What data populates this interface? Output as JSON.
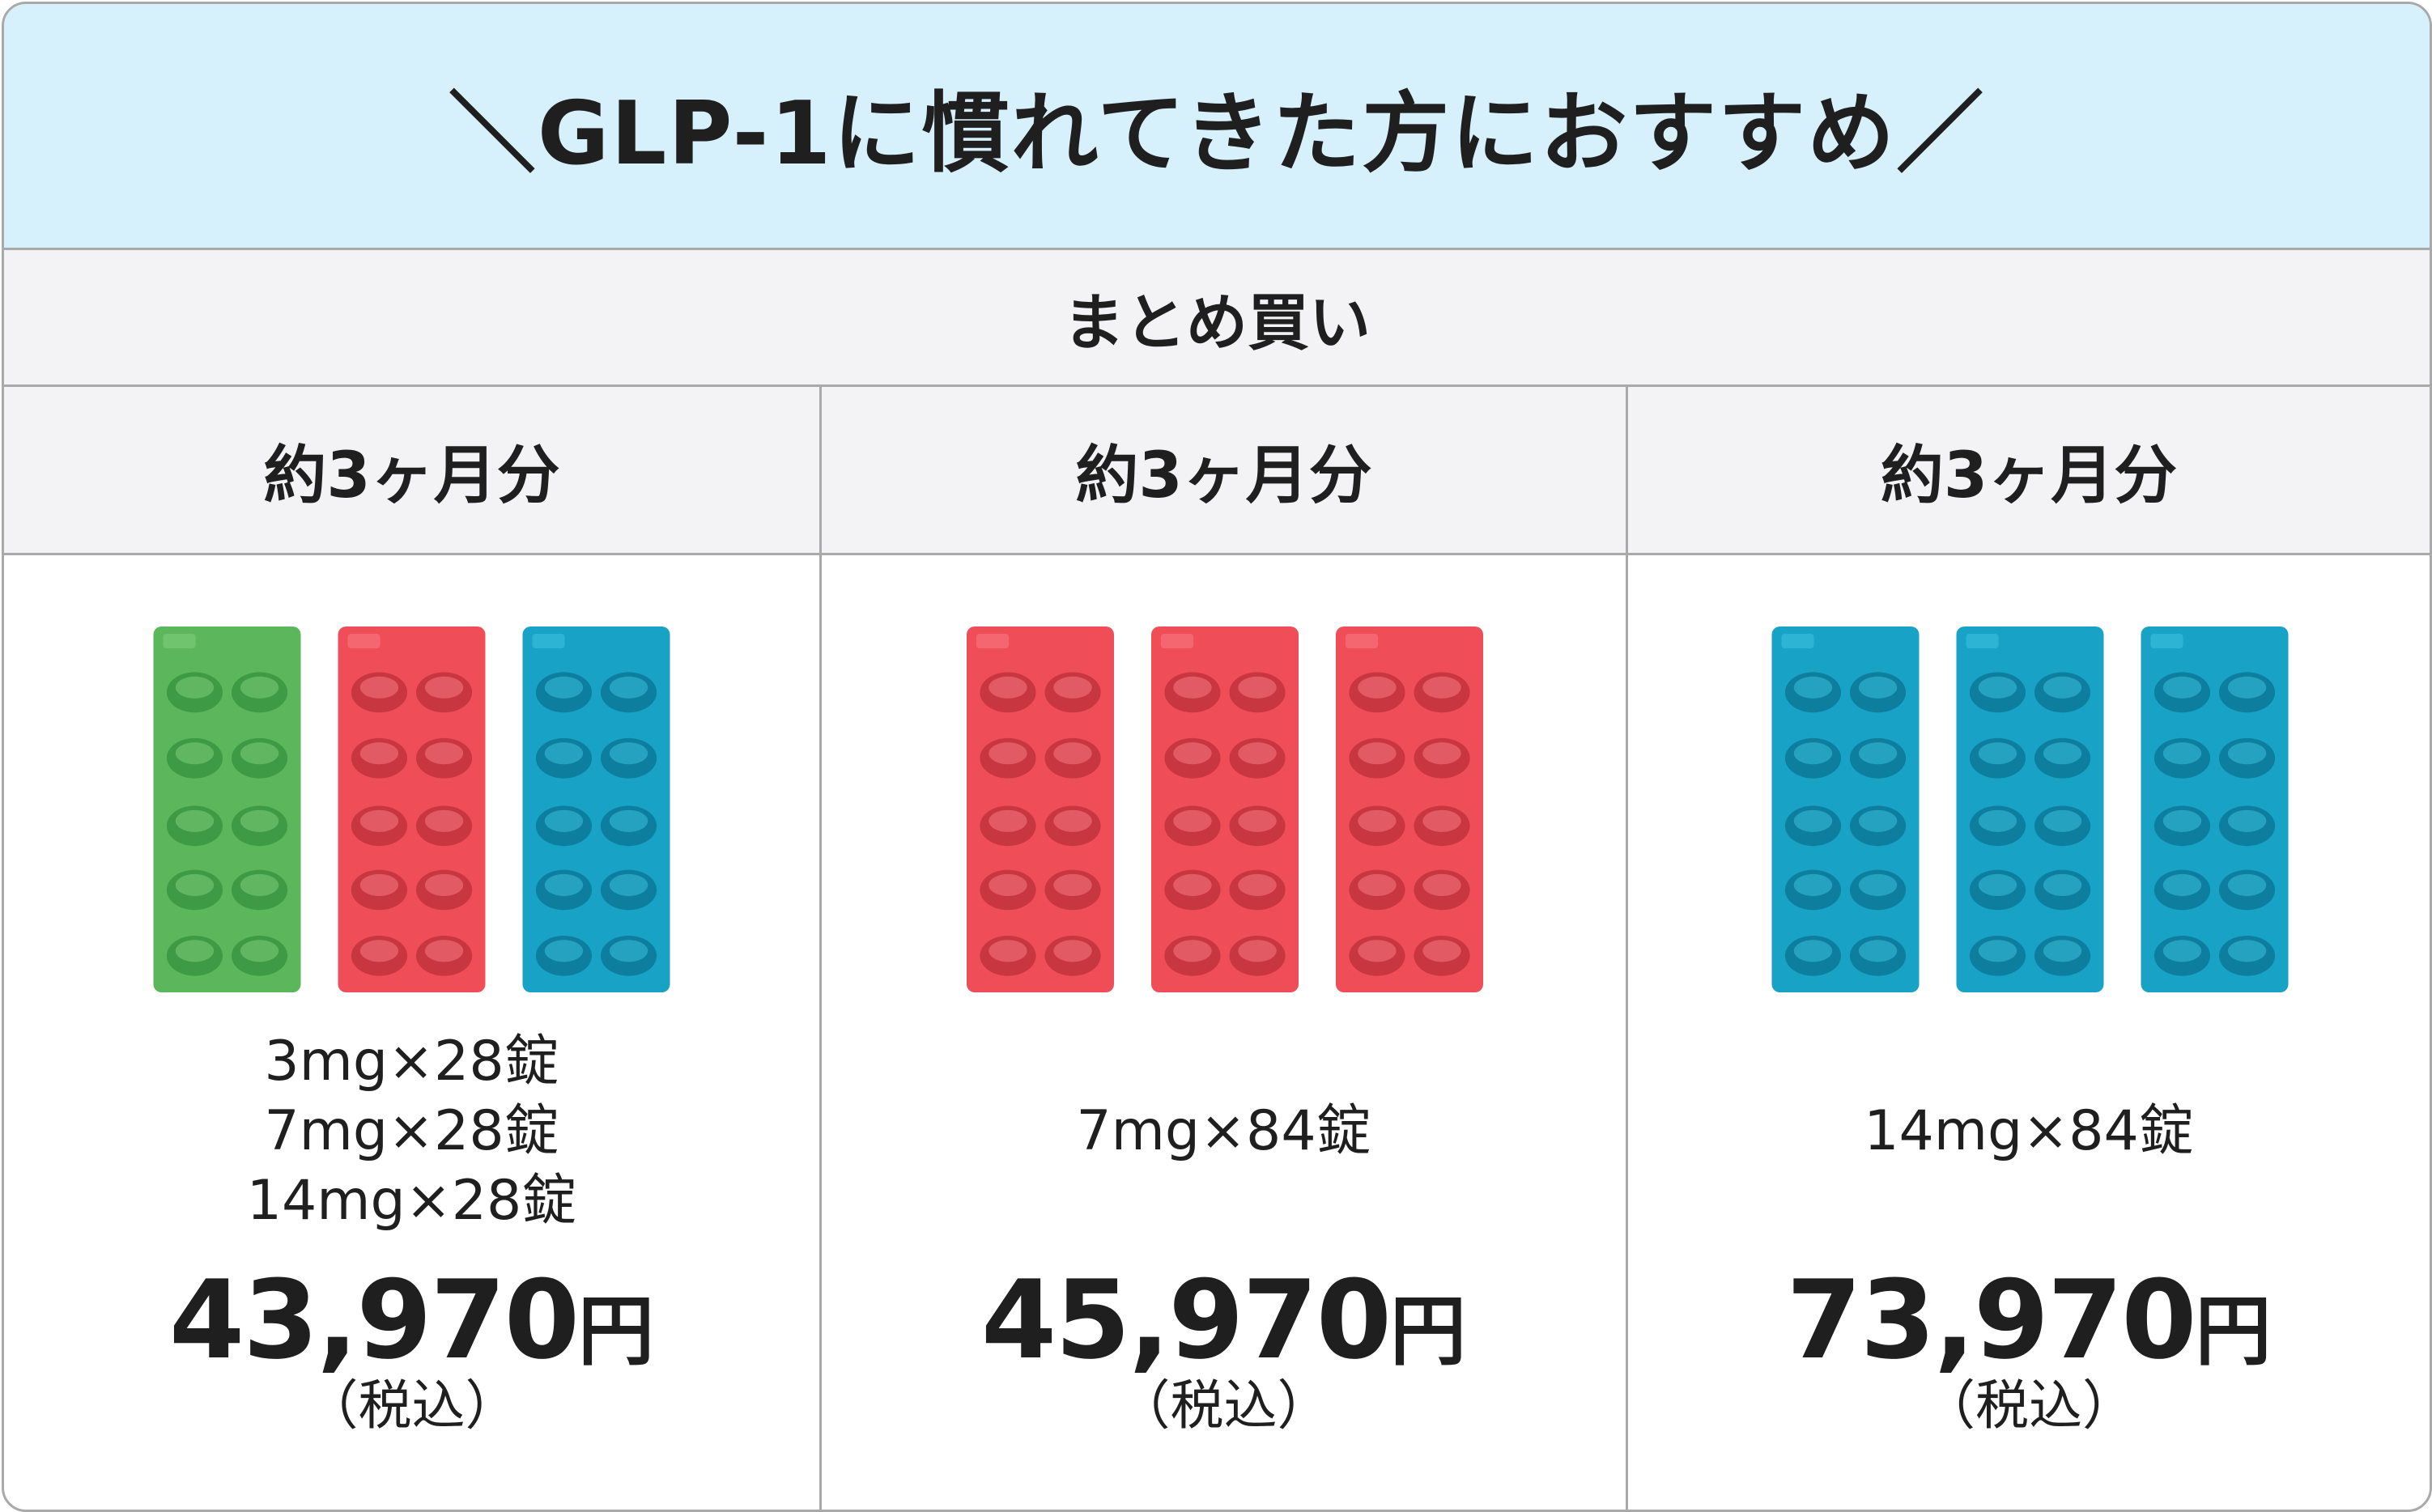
{
  "header": {
    "title": "＼GLP-1に慣れてきた方におすすめ／",
    "subtitle": "まとめ買い"
  },
  "columns": [
    {
      "header": "約3ヶ月分",
      "doses": [
        "3mg×28錠",
        "7mg×28錠",
        "14mg×28錠"
      ],
      "price": "43,970",
      "unit": "円",
      "tax": "（税込）"
    },
    {
      "header": "約3ヶ月分",
      "doses": [
        "7mg×84錠"
      ],
      "price": "45,970",
      "unit": "円",
      "tax": "（税込）"
    },
    {
      "header": "約3ヶ月分",
      "doses": [
        "14mg×84錠"
      ],
      "price": "73,970",
      "unit": "円",
      "tax": "（税込）"
    }
  ]
}
